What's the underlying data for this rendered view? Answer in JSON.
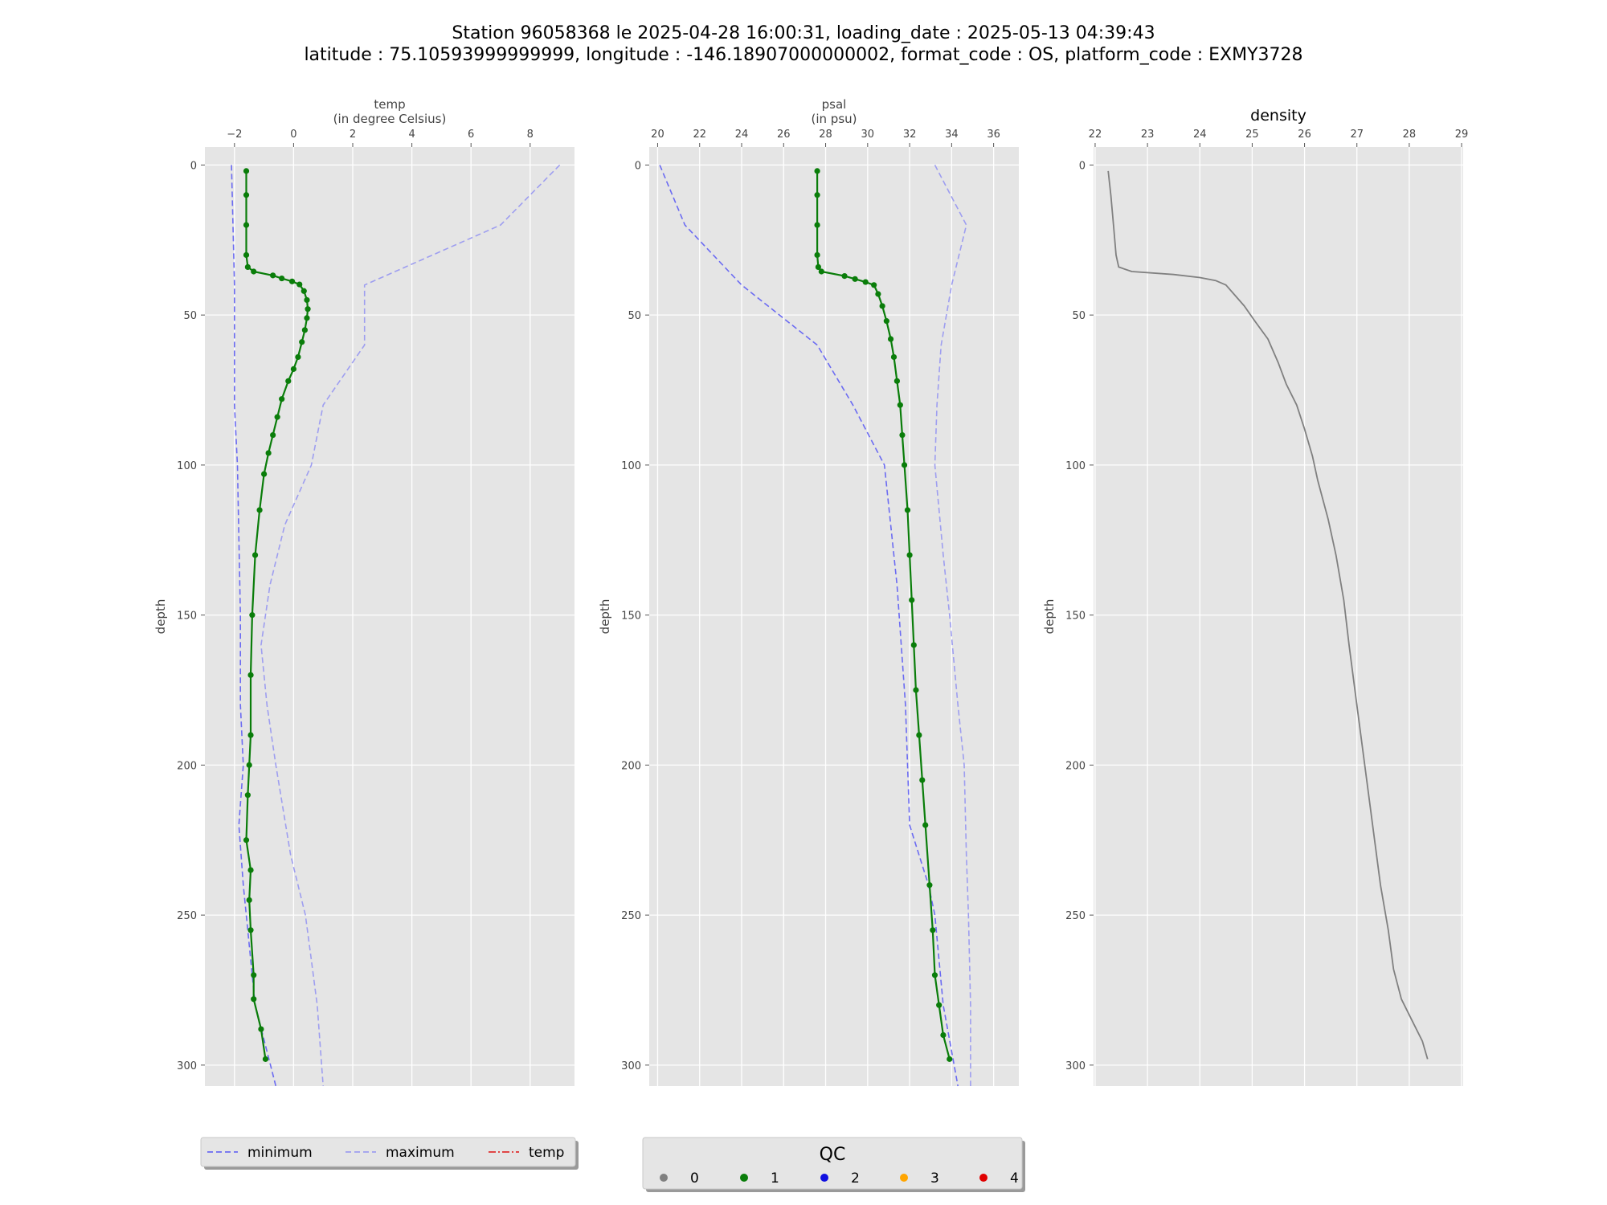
{
  "figure": {
    "title_line1": "Station 96058368 le 2025-04-28 16:00:31, loading_date : 2025-05-13 04:39:43",
    "title_line2": "latitude : 75.10593999999999, longitude : -146.18907000000002, format_code : OS, platform_code : EXMY3728"
  },
  "chart_data": [
    {
      "type": "line",
      "panel": "temp",
      "xlabel_line1": "temp",
      "xlabel_line2": "(in degree Celsius)",
      "ylabel": "depth",
      "xlim": [
        -3.0,
        9.5
      ],
      "ylim": [
        307,
        -6
      ],
      "x_ticks": [
        -2,
        0,
        2,
        4,
        6,
        8
      ],
      "x_tick_labels": [
        "−2",
        "0",
        "2",
        "4",
        "6",
        "8"
      ],
      "y_ticks": [
        0,
        50,
        100,
        150,
        200,
        250,
        300
      ],
      "y_tick_labels": [
        "0",
        "50",
        "100",
        "150",
        "200",
        "250",
        "300"
      ],
      "grid": true,
      "series": [
        {
          "name": "minimum",
          "style": "dashed",
          "color": "#6b6bf2",
          "points": [
            [
              -2.1,
              0
            ],
            [
              -2.0,
              40
            ],
            [
              -2.0,
              80
            ],
            [
              -1.9,
              100
            ],
            [
              -1.8,
              150
            ],
            [
              -1.8,
              180
            ],
            [
              -1.7,
              200
            ],
            [
              -1.85,
              220
            ],
            [
              -1.7,
              240
            ],
            [
              -1.5,
              260
            ],
            [
              -1.3,
              280
            ],
            [
              -0.6,
              307
            ]
          ]
        },
        {
          "name": "maximum",
          "style": "dashed",
          "color": "#9e9ef0",
          "points": [
            [
              9.0,
              0
            ],
            [
              7.0,
              20
            ],
            [
              2.4,
              40
            ],
            [
              2.4,
              60
            ],
            [
              1.0,
              80
            ],
            [
              0.6,
              100
            ],
            [
              -0.3,
              120
            ],
            [
              -0.8,
              140
            ],
            [
              -1.1,
              160
            ],
            [
              -0.9,
              180
            ],
            [
              -0.6,
              200
            ],
            [
              -0.1,
              230
            ],
            [
              0.4,
              250
            ],
            [
              0.6,
              265
            ],
            [
              0.8,
              280
            ],
            [
              1.0,
              307
            ]
          ]
        },
        {
          "name": "temp",
          "qc": 1,
          "color": "#0a7d0a",
          "points": [
            [
              -1.6,
              2
            ],
            [
              -1.6,
              10
            ],
            [
              -1.6,
              20
            ],
            [
              -1.6,
              30
            ],
            [
              -1.55,
              34
            ],
            [
              -1.35,
              35.5
            ],
            [
              -0.7,
              36.8
            ],
            [
              -0.4,
              37.8
            ],
            [
              -0.05,
              38.8
            ],
            [
              0.2,
              39.8
            ],
            [
              0.35,
              42
            ],
            [
              0.45,
              45
            ],
            [
              0.48,
              48
            ],
            [
              0.45,
              51
            ],
            [
              0.38,
              55
            ],
            [
              0.28,
              59
            ],
            [
              0.15,
              64
            ],
            [
              0.0,
              68
            ],
            [
              -0.18,
              72
            ],
            [
              -0.4,
              78
            ],
            [
              -0.55,
              84
            ],
            [
              -0.7,
              90
            ],
            [
              -0.85,
              96
            ],
            [
              -1.0,
              103
            ],
            [
              -1.15,
              115
            ],
            [
              -1.3,
              130
            ],
            [
              -1.4,
              150
            ],
            [
              -1.45,
              170
            ],
            [
              -1.45,
              190
            ],
            [
              -1.5,
              200
            ],
            [
              -1.55,
              210
            ],
            [
              -1.6,
              225
            ],
            [
              -1.45,
              235
            ],
            [
              -1.5,
              245
            ],
            [
              -1.45,
              255
            ],
            [
              -1.35,
              270
            ],
            [
              -1.35,
              278
            ],
            [
              -1.1,
              288
            ],
            [
              -0.95,
              298
            ]
          ]
        }
      ]
    },
    {
      "type": "line",
      "panel": "psal",
      "xlabel_line1": "psal",
      "xlabel_line2": "(in psu)",
      "ylabel": "depth",
      "xlim": [
        19.6,
        37.2
      ],
      "ylim": [
        307,
        -6
      ],
      "x_ticks": [
        20,
        22,
        24,
        26,
        28,
        30,
        32,
        34,
        36
      ],
      "x_tick_labels": [
        "20",
        "22",
        "24",
        "26",
        "28",
        "30",
        "32",
        "34",
        "36"
      ],
      "y_ticks": [
        0,
        50,
        100,
        150,
        200,
        250,
        300
      ],
      "y_tick_labels": [
        "0",
        "50",
        "100",
        "150",
        "200",
        "250",
        "300"
      ],
      "grid": true,
      "series": [
        {
          "name": "minimum",
          "style": "dashed",
          "color": "#6b6bf2",
          "points": [
            [
              20.1,
              0
            ],
            [
              21.3,
              20
            ],
            [
              24.0,
              40
            ],
            [
              27.6,
              60
            ],
            [
              29.3,
              80
            ],
            [
              30.8,
              100
            ],
            [
              31.4,
              140
            ],
            [
              31.8,
              180
            ],
            [
              32.0,
              220
            ],
            [
              32.9,
              240
            ],
            [
              33.2,
              250
            ],
            [
              33.6,
              280
            ],
            [
              34.3,
              307
            ]
          ]
        },
        {
          "name": "maximum",
          "style": "dashed",
          "color": "#9e9ef0",
          "points": [
            [
              33.2,
              0
            ],
            [
              34.7,
              20
            ],
            [
              34.0,
              40
            ],
            [
              33.5,
              60
            ],
            [
              33.3,
              80
            ],
            [
              33.2,
              100
            ],
            [
              33.6,
              130
            ],
            [
              33.9,
              150
            ],
            [
              34.3,
              180
            ],
            [
              34.6,
              200
            ],
            [
              34.7,
              230
            ],
            [
              34.8,
              250
            ],
            [
              34.9,
              280
            ],
            [
              34.9,
              307
            ]
          ]
        },
        {
          "name": "psal",
          "qc": 1,
          "color": "#0a7d0a",
          "points": [
            [
              27.6,
              2
            ],
            [
              27.6,
              10
            ],
            [
              27.6,
              20
            ],
            [
              27.6,
              30
            ],
            [
              27.65,
              34
            ],
            [
              27.8,
              35.5
            ],
            [
              28.9,
              37
            ],
            [
              29.4,
              38
            ],
            [
              29.9,
              39
            ],
            [
              30.3,
              40
            ],
            [
              30.5,
              43
            ],
            [
              30.7,
              47
            ],
            [
              30.9,
              52
            ],
            [
              31.1,
              58
            ],
            [
              31.25,
              64
            ],
            [
              31.4,
              72
            ],
            [
              31.55,
              80
            ],
            [
              31.65,
              90
            ],
            [
              31.75,
              100
            ],
            [
              31.9,
              115
            ],
            [
              32.0,
              130
            ],
            [
              32.1,
              145
            ],
            [
              32.2,
              160
            ],
            [
              32.3,
              175
            ],
            [
              32.45,
              190
            ],
            [
              32.6,
              205
            ],
            [
              32.75,
              220
            ],
            [
              32.95,
              240
            ],
            [
              33.1,
              255
            ],
            [
              33.2,
              270
            ],
            [
              33.4,
              280
            ],
            [
              33.6,
              290
            ],
            [
              33.9,
              298
            ]
          ]
        }
      ]
    },
    {
      "type": "line",
      "panel": "density",
      "xlabel_line1": "density",
      "ylabel": "depth",
      "xlim": [
        21.97,
        29.03
      ],
      "ylim": [
        307,
        -6
      ],
      "x_ticks": [
        22,
        23,
        24,
        25,
        26,
        27,
        28,
        29
      ],
      "x_tick_labels": [
        "22",
        "23",
        "24",
        "25",
        "26",
        "27",
        "28",
        "29"
      ],
      "y_ticks": [
        0,
        50,
        100,
        150,
        200,
        250,
        300
      ],
      "y_tick_labels": [
        "0",
        "50",
        "100",
        "150",
        "200",
        "250",
        "300"
      ],
      "grid": true,
      "series": [
        {
          "name": "density",
          "color": "#808080",
          "points": [
            [
              22.25,
              2
            ],
            [
              22.3,
              10
            ],
            [
              22.35,
              20
            ],
            [
              22.4,
              30
            ],
            [
              22.45,
              34
            ],
            [
              22.7,
              35.5
            ],
            [
              23.5,
              36.5
            ],
            [
              24.0,
              37.5
            ],
            [
              24.3,
              38.5
            ],
            [
              24.5,
              40
            ],
            [
              24.65,
              43
            ],
            [
              24.85,
              47
            ],
            [
              25.05,
              52
            ],
            [
              25.3,
              58
            ],
            [
              25.5,
              66
            ],
            [
              25.65,
              73
            ],
            [
              25.85,
              80
            ],
            [
              26.0,
              88
            ],
            [
              26.15,
              97
            ],
            [
              26.25,
              105
            ],
            [
              26.45,
              118
            ],
            [
              26.6,
              130
            ],
            [
              26.75,
              145
            ],
            [
              26.85,
              160
            ],
            [
              27.0,
              180
            ],
            [
              27.15,
              200
            ],
            [
              27.3,
              220
            ],
            [
              27.45,
              240
            ],
            [
              27.6,
              255
            ],
            [
              27.7,
              268
            ],
            [
              27.85,
              278
            ],
            [
              28.05,
              285
            ],
            [
              28.25,
              292
            ],
            [
              28.35,
              298
            ]
          ]
        }
      ]
    }
  ],
  "legend_variables": {
    "items": [
      {
        "label": "minimum",
        "color": "#6b6bf2",
        "style": "dashed"
      },
      {
        "label": "maximum",
        "color": "#9e9ef0",
        "style": "dashed"
      },
      {
        "label": "temp",
        "color": "#e03030",
        "style": "dashdot"
      }
    ]
  },
  "legend_qc": {
    "title": "QC",
    "items": [
      {
        "label": "0",
        "color": "#808080"
      },
      {
        "label": "1",
        "color": "#0a7d0a"
      },
      {
        "label": "2",
        "color": "#1010e0"
      },
      {
        "label": "3",
        "color": "#ffa500"
      },
      {
        "label": "4",
        "color": "#e00000"
      }
    ]
  }
}
